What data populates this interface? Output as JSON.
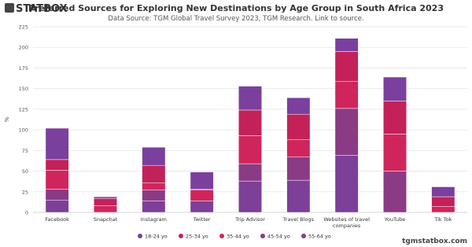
{
  "logo": "STATBOX",
  "footer": "tgmstatbox.com",
  "chart_data": {
    "type": "stacked-bar",
    "title": "Preferred Sources for Exploring New Destinations by Age Group in South Africa 2023",
    "subtitle": "Data Source: TGM Global Travel Survey 2023, TGM Research. Link to source.",
    "y_label": "%",
    "categories": [
      "Facebook",
      "Snapchat",
      "Instagram",
      "Twitter",
      "Trip Advisor",
      "Travel Blogs",
      "Websites of travel companies",
      "YouTube",
      "Tik Tok"
    ],
    "series": [
      {
        "name": "18-24 yo",
        "color": "#7b3f9e",
        "values": [
          38,
          2,
          22,
          21,
          29,
          20,
          16,
          29,
          12
        ]
      },
      {
        "name": "25-34 yo",
        "color": "#c2215a",
        "values": [
          13,
          9,
          21,
          1,
          31,
          31,
          36,
          40,
          12
        ]
      },
      {
        "name": "35-44 yo",
        "color": "#d0255c",
        "values": [
          23,
          8,
          9,
          13,
          34,
          21,
          33,
          45,
          7
        ]
      },
      {
        "name": "45-54 yo",
        "color": "#8b3a86",
        "values": [
          13,
          0,
          13,
          0,
          21,
          28,
          57,
          50,
          0
        ]
      },
      {
        "name": "55-64 yo",
        "color": "#7d3f98",
        "values": [
          15,
          0,
          14,
          14,
          38,
          39,
          69,
          0,
          0
        ]
      }
    ],
    "ylim": [
      0,
      225
    ],
    "yticks": [
      0,
      25,
      50,
      75,
      100,
      125,
      150,
      175,
      200,
      225
    ],
    "grid": true
  }
}
